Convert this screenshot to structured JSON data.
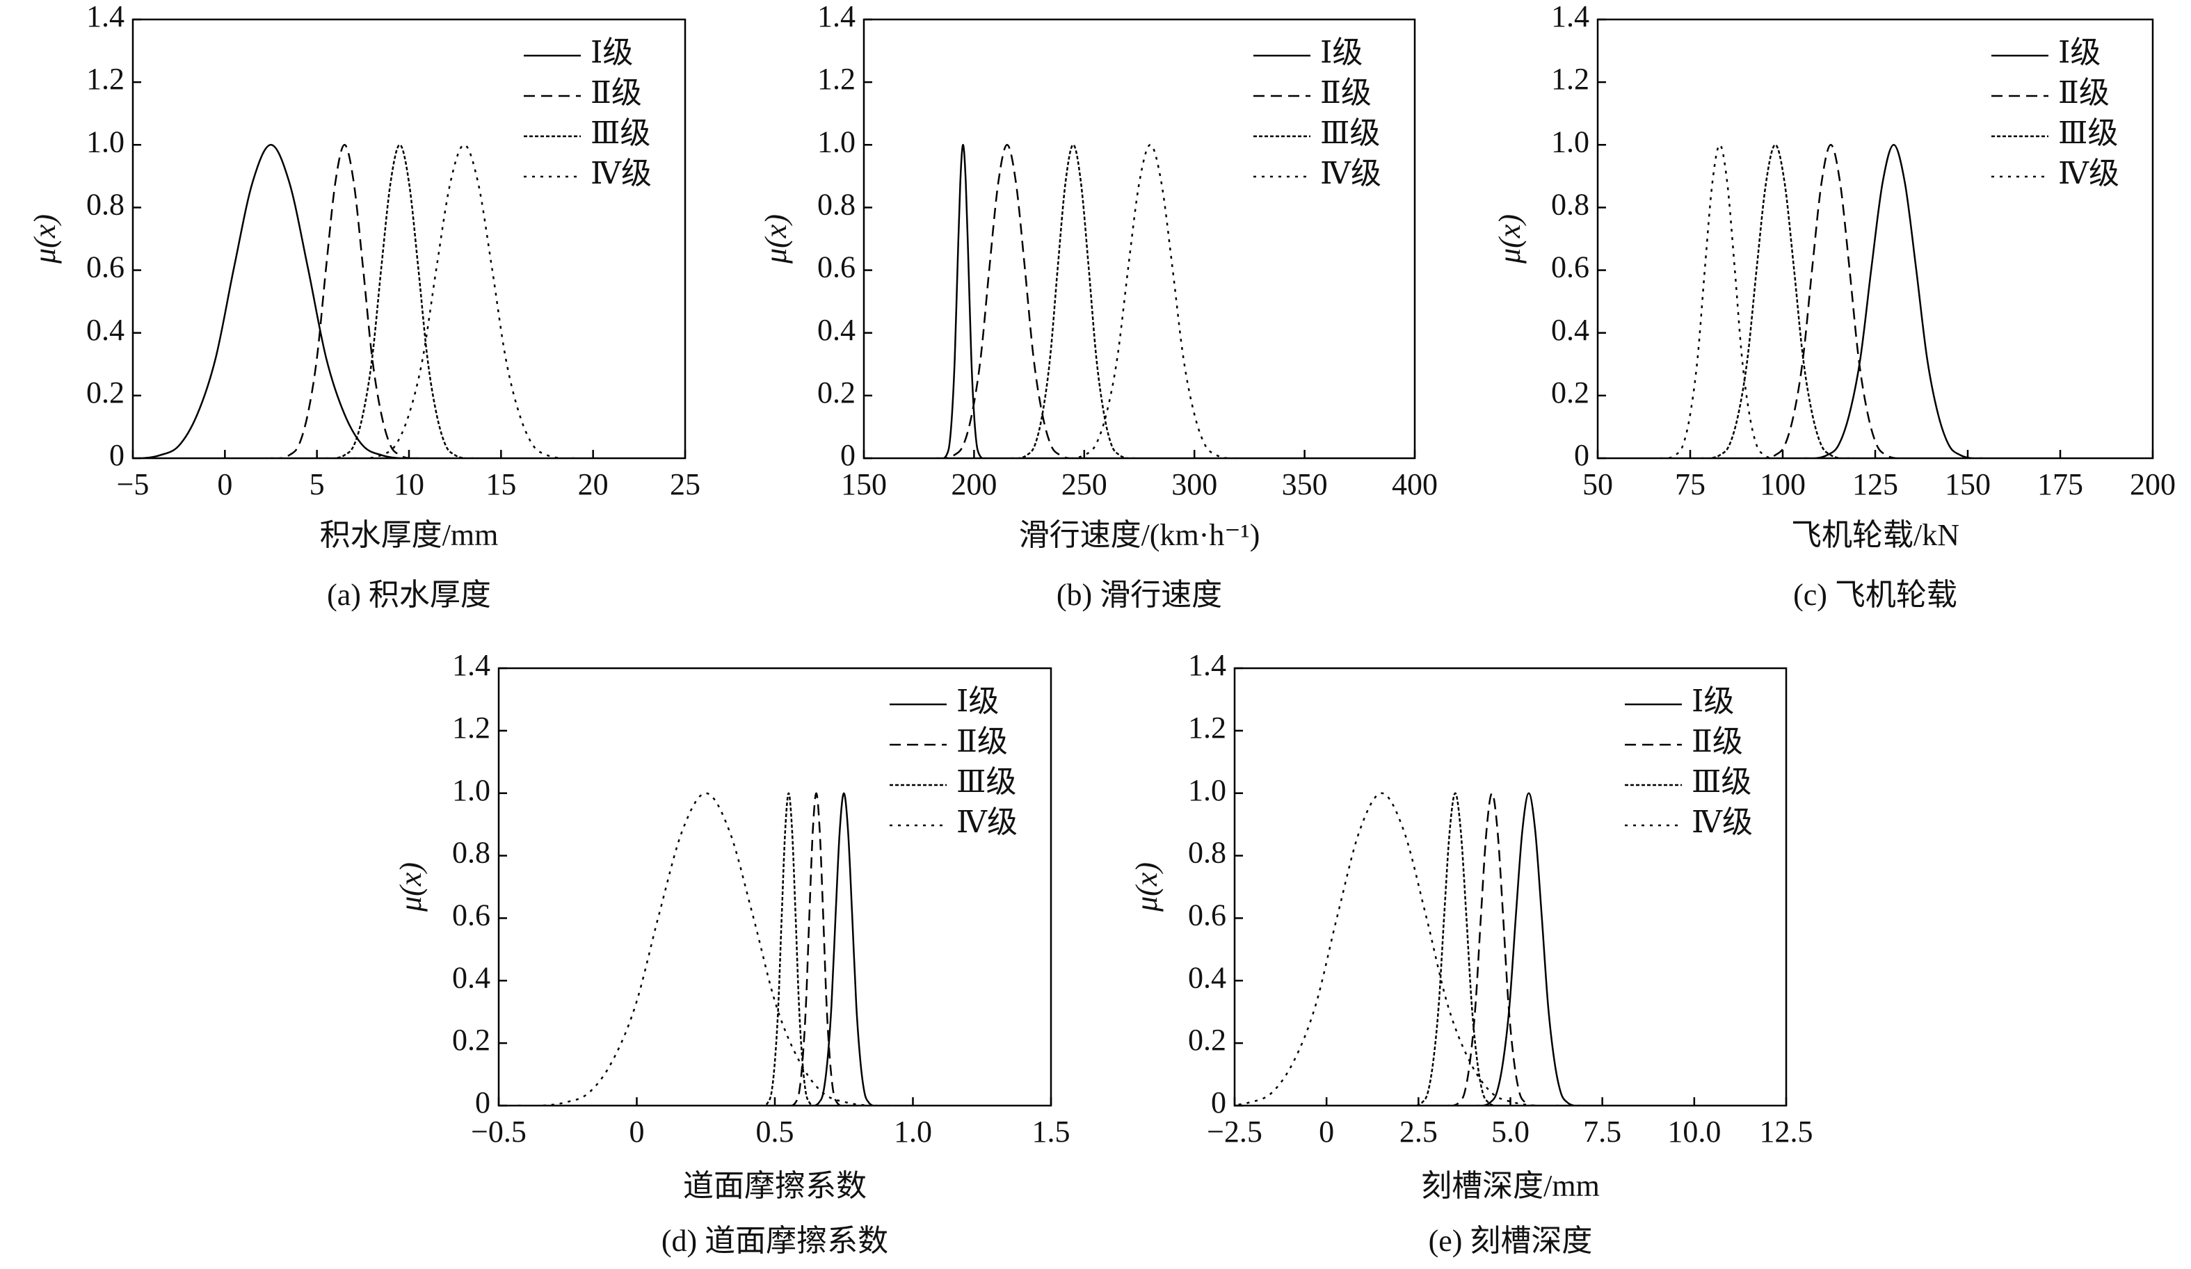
{
  "chart_data": [
    {
      "type": "line",
      "title": "(a) 积水厚度",
      "x_label": "积水厚度/mm",
      "y_label": "μ(x)",
      "xlim": [
        -5,
        25
      ],
      "ylim": [
        0,
        1.4
      ],
      "xticks": [
        {
          "value": -5,
          "label": "−5"
        },
        0,
        5,
        10,
        15,
        20,
        25
      ],
      "yticks": [
        0,
        0.2,
        0.4,
        0.6,
        0.8,
        {
          "value": 1,
          "label": "1.0"
        },
        1.2,
        1.4
      ],
      "legend": "upper right",
      "series": [
        {
          "name": "Ⅰ级",
          "color": "#000000",
          "line_style": "solid",
          "x": [
            -5.5,
            -4.5,
            -3.5,
            -2.5,
            -1.5,
            -0.5,
            0.5,
            1.5,
            2.5,
            3.5,
            4.5,
            5.5,
            6.5,
            7.5,
            8.5,
            9.5,
            10.5
          ],
          "values": [
            0,
            0,
            0.01,
            0.04,
            0.14,
            0.32,
            0.61,
            0.88,
            1,
            0.88,
            0.61,
            0.32,
            0.14,
            0.04,
            0.01,
            0,
            0
          ]
        },
        {
          "name": "Ⅱ级",
          "color": "#000000",
          "line_style": "dashed",
          "x": [
            2.5,
            3,
            3.5,
            4,
            4.5,
            5,
            5.5,
            6,
            6.5,
            7,
            7.5,
            8,
            8.5,
            9,
            9.5,
            10,
            10.5
          ],
          "values": [
            0,
            0,
            0.01,
            0.04,
            0.14,
            0.32,
            0.61,
            0.88,
            1,
            0.88,
            0.61,
            0.32,
            0.14,
            0.04,
            0.01,
            0,
            0
          ]
        },
        {
          "name": "Ⅲ级",
          "color": "#000000",
          "line_style": "dotted",
          "x": [
            5.5,
            6,
            6.5,
            7,
            7.5,
            8,
            8.5,
            9,
            9.5,
            10,
            10.5,
            11,
            11.5,
            12,
            12.5,
            13,
            13.5
          ],
          "values": [
            0,
            0,
            0.01,
            0.04,
            0.14,
            0.32,
            0.61,
            0.88,
            1,
            0.88,
            0.61,
            0.32,
            0.14,
            0.04,
            0.01,
            0,
            0
          ]
        },
        {
          "name": "Ⅳ级",
          "color": "#000000",
          "line_style": "sparse-dotted",
          "x": [
            7,
            7.75,
            8.5,
            9.25,
            10,
            10.75,
            11.5,
            12.25,
            13,
            13.75,
            14.5,
            15.25,
            16,
            16.75,
            17.5,
            18.25,
            19
          ],
          "values": [
            0,
            0,
            0.01,
            0.04,
            0.14,
            0.32,
            0.61,
            0.88,
            1,
            0.88,
            0.61,
            0.32,
            0.14,
            0.04,
            0.01,
            0,
            0
          ]
        }
      ]
    },
    {
      "type": "line",
      "title": "(b) 滑行速度",
      "x_label": "滑行速度/(km·h⁻¹)",
      "y_label": "μ(x)",
      "xlim": [
        150,
        400
      ],
      "ylim": [
        0,
        1.4
      ],
      "xticks": [
        150,
        200,
        250,
        300,
        350,
        400
      ],
      "yticks": [
        0,
        0.2,
        0.4,
        0.6,
        0.8,
        {
          "value": 1,
          "label": "1.0"
        },
        1.2,
        1.4
      ],
      "legend": "upper right",
      "series": [
        {
          "name": "Ⅰ级",
          "color": "#000000",
          "line_style": "solid",
          "x": [
            185,
            186.25,
            187.5,
            188.75,
            190,
            191.25,
            192.5,
            193.75,
            195,
            196.25,
            197.5,
            198.75,
            200,
            201.25,
            202.5,
            203.75,
            205
          ],
          "values": [
            0,
            0,
            0.01,
            0.04,
            0.14,
            0.32,
            0.61,
            0.88,
            1,
            0.88,
            0.61,
            0.32,
            0.14,
            0.04,
            0.01,
            0,
            0
          ]
        },
        {
          "name": "Ⅱ级",
          "color": "#000000",
          "line_style": "dashed",
          "x": [
            183,
            187,
            191,
            195,
            199,
            203,
            207,
            211,
            215,
            219,
            223,
            227,
            231,
            235,
            239,
            243,
            247
          ],
          "values": [
            0,
            0,
            0.01,
            0.04,
            0.14,
            0.32,
            0.61,
            0.88,
            1,
            0.88,
            0.61,
            0.32,
            0.14,
            0.04,
            0.01,
            0,
            0
          ]
        },
        {
          "name": "Ⅲ级",
          "color": "#000000",
          "line_style": "dotted",
          "x": [
            217,
            220.5,
            224,
            227.5,
            231,
            234.5,
            238,
            241.5,
            245,
            248.5,
            252,
            255.5,
            259,
            262.5,
            266,
            269.5,
            273
          ],
          "values": [
            0,
            0,
            0.01,
            0.04,
            0.14,
            0.32,
            0.61,
            0.88,
            1,
            0.88,
            0.61,
            0.32,
            0.14,
            0.04,
            0.01,
            0,
            0
          ]
        },
        {
          "name": "Ⅳ级",
          "color": "#000000",
          "line_style": "sparse-dotted",
          "x": [
            240,
            245,
            250,
            255,
            260,
            265,
            270,
            275,
            280,
            285,
            290,
            295,
            300,
            305,
            310,
            315,
            320
          ],
          "values": [
            0,
            0,
            0.01,
            0.04,
            0.14,
            0.32,
            0.61,
            0.88,
            1,
            0.88,
            0.61,
            0.32,
            0.14,
            0.04,
            0.01,
            0,
            0
          ]
        }
      ]
    },
    {
      "type": "line",
      "title": "(c) 飞机轮载",
      "x_label": "飞机轮载/kN",
      "y_label": "μ(x)",
      "xlim": [
        50,
        200
      ],
      "ylim": [
        0,
        1.4
      ],
      "xticks": [
        50,
        75,
        100,
        125,
        150,
        175,
        200
      ],
      "yticks": [
        0,
        0.2,
        0.4,
        0.6,
        0.8,
        {
          "value": 1,
          "label": "1.0"
        },
        1.2,
        1.4
      ],
      "legend": "upper right",
      "series": [
        {
          "name": "Ⅰ级",
          "color": "#000000",
          "line_style": "solid",
          "x": [
            106,
            109,
            112,
            115,
            118,
            121,
            124,
            127,
            130,
            133,
            136,
            139,
            142,
            145,
            148,
            151,
            154
          ],
          "values": [
            0,
            0,
            0.01,
            0.04,
            0.14,
            0.32,
            0.61,
            0.88,
            1,
            0.88,
            0.61,
            0.32,
            0.14,
            0.04,
            0.01,
            0,
            0
          ]
        },
        {
          "name": "Ⅱ级",
          "color": "#000000",
          "line_style": "dashed",
          "x": [
            93,
            95.5,
            98,
            100.5,
            103,
            105.5,
            108,
            110.5,
            113,
            115.5,
            118,
            120.5,
            123,
            125.5,
            128,
            130.5,
            133
          ],
          "values": [
            0,
            0,
            0.01,
            0.04,
            0.14,
            0.32,
            0.61,
            0.88,
            1,
            0.88,
            0.61,
            0.32,
            0.14,
            0.04,
            0.01,
            0,
            0
          ]
        },
        {
          "name": "Ⅲ级",
          "color": "#000000",
          "line_style": "dotted",
          "x": [
            78,
            80.5,
            83,
            85.5,
            88,
            90.5,
            93,
            95.5,
            98,
            100.5,
            103,
            105.5,
            108,
            110.5,
            113,
            115.5,
            118
          ],
          "values": [
            0,
            0,
            0.01,
            0.04,
            0.14,
            0.32,
            0.61,
            0.88,
            1,
            0.88,
            0.61,
            0.32,
            0.14,
            0.04,
            0.01,
            0,
            0
          ]
        },
        {
          "name": "Ⅳ级",
          "color": "#000000",
          "line_style": "sparse-dotted",
          "x": [
            67,
            69,
            71,
            73,
            75,
            77,
            79,
            81,
            83,
            85,
            87,
            89,
            91,
            93,
            95,
            97,
            99
          ],
          "values": [
            0,
            0,
            0.01,
            0.04,
            0.14,
            0.32,
            0.61,
            0.88,
            1,
            0.88,
            0.61,
            0.32,
            0.14,
            0.04,
            0.01,
            0,
            0
          ]
        }
      ]
    },
    {
      "type": "line",
      "title": "(d) 道面摩擦系数",
      "x_label": "道面摩擦系数",
      "y_label": "μ(x)",
      "xlim": [
        -0.5,
        1.5
      ],
      "ylim": [
        0,
        1.4
      ],
      "xticks": [
        {
          "value": -0.5,
          "label": "−0.5"
        },
        0,
        0.5,
        {
          "value": 1,
          "label": "1.0"
        },
        1.5
      ],
      "yticks": [
        0,
        0.2,
        0.4,
        0.6,
        0.8,
        {
          "value": 1,
          "label": "1.0"
        },
        1.2,
        1.4
      ],
      "legend": "upper right",
      "series": [
        {
          "name": "Ⅰ级",
          "color": "#000000",
          "line_style": "solid",
          "x": [
            0.63,
            0.645,
            0.66,
            0.675,
            0.69,
            0.705,
            0.72,
            0.735,
            0.75,
            0.765,
            0.78,
            0.795,
            0.81,
            0.825,
            0.84,
            0.855,
            0.87
          ],
          "values": [
            0,
            0,
            0.01,
            0.04,
            0.14,
            0.32,
            0.61,
            0.88,
            1,
            0.88,
            0.61,
            0.32,
            0.14,
            0.04,
            0.01,
            0,
            0
          ]
        },
        {
          "name": "Ⅱ级",
          "color": "#000000",
          "line_style": "dashed",
          "x": [
            0.55,
            0.5625,
            0.575,
            0.5875,
            0.6,
            0.6125,
            0.625,
            0.6375,
            0.65,
            0.6625,
            0.675,
            0.6875,
            0.7,
            0.7125,
            0.725,
            0.7375,
            0.75
          ],
          "values": [
            0,
            0,
            0.01,
            0.04,
            0.14,
            0.32,
            0.61,
            0.88,
            1,
            0.88,
            0.61,
            0.32,
            0.14,
            0.04,
            0.01,
            0,
            0
          ]
        },
        {
          "name": "Ⅲ级",
          "color": "#000000",
          "line_style": "dotted",
          "x": [
            0.45,
            0.4625,
            0.475,
            0.4875,
            0.5,
            0.5125,
            0.525,
            0.5375,
            0.55,
            0.5625,
            0.575,
            0.5875,
            0.6,
            0.6125,
            0.625,
            0.6375,
            0.65
          ],
          "values": [
            0,
            0,
            0.01,
            0.04,
            0.14,
            0.32,
            0.61,
            0.88,
            1,
            0.88,
            0.61,
            0.32,
            0.14,
            0.04,
            0.01,
            0,
            0
          ]
        },
        {
          "name": "Ⅳ级",
          "color": "#000000",
          "line_style": "sparse-dotted",
          "x": [
            -0.43,
            -0.345,
            -0.26,
            -0.175,
            -0.09,
            -0.005,
            0.08,
            0.165,
            0.25,
            0.335,
            0.42,
            0.505,
            0.59,
            0.675,
            0.76,
            0.845,
            0.93
          ],
          "values": [
            0,
            0,
            0.01,
            0.04,
            0.14,
            0.32,
            0.61,
            0.88,
            1,
            0.88,
            0.61,
            0.32,
            0.14,
            0.04,
            0.01,
            0,
            0
          ]
        }
      ]
    },
    {
      "type": "line",
      "title": "(e) 刻槽深度",
      "x_label": "刻槽深度/mm",
      "y_label": "μ(x)",
      "xlim": [
        -2.5,
        12.5
      ],
      "ylim": [
        0,
        1.4
      ],
      "xticks": [
        {
          "value": -2.5,
          "label": "−2.5"
        },
        0,
        2.5,
        {
          "value": 5,
          "label": "5.0"
        },
        7.5,
        {
          "value": 10,
          "label": "10.0"
        },
        12.5
      ],
      "yticks": [
        0,
        0.2,
        0.4,
        0.6,
        0.8,
        {
          "value": 1,
          "label": "1.0"
        },
        1.2,
        1.4
      ],
      "legend": "upper right",
      "series": [
        {
          "name": "Ⅰ级",
          "color": "#000000",
          "line_style": "solid",
          "x": [
            4.1,
            4.275,
            4.45,
            4.625,
            4.8,
            4.975,
            5.15,
            5.325,
            5.5,
            5.675,
            5.85,
            6.025,
            6.2,
            6.375,
            6.55,
            6.725,
            6.9
          ],
          "values": [
            0,
            0,
            0.01,
            0.04,
            0.14,
            0.32,
            0.61,
            0.88,
            1,
            0.88,
            0.61,
            0.32,
            0.14,
            0.04,
            0.01,
            0,
            0
          ]
        },
        {
          "name": "Ⅱ级",
          "color": "#000000",
          "line_style": "dashed",
          "x": [
            3.3,
            3.45,
            3.6,
            3.75,
            3.9,
            4.05,
            4.2,
            4.35,
            4.5,
            4.65,
            4.8,
            4.95,
            5.1,
            5.25,
            5.4,
            5.55,
            5.7
          ],
          "values": [
            0,
            0,
            0.01,
            0.04,
            0.14,
            0.32,
            0.61,
            0.88,
            1,
            0.88,
            0.61,
            0.32,
            0.14,
            0.04,
            0.01,
            0,
            0
          ]
        },
        {
          "name": "Ⅲ级",
          "color": "#000000",
          "line_style": "dotted",
          "x": [
            2.3,
            2.45,
            2.6,
            2.75,
            2.9,
            3.05,
            3.2,
            3.35,
            3.5,
            3.65,
            3.8,
            3.95,
            4.1,
            4.25,
            4.4,
            4.55,
            4.7
          ],
          "values": [
            0,
            0,
            0.01,
            0.04,
            0.14,
            0.32,
            0.61,
            0.88,
            1,
            0.88,
            0.61,
            0.32,
            0.14,
            0.04,
            0.01,
            0,
            0
          ]
        },
        {
          "name": "Ⅳ级",
          "color": "#000000",
          "line_style": "sparse-dotted",
          "x": [
            -3.3,
            -2.7,
            -2.1,
            -1.5,
            -0.9,
            -0.3,
            0.3,
            0.9,
            1.5,
            2.1,
            2.7,
            3.3,
            3.9,
            4.5,
            5.1,
            5.7,
            6.3
          ],
          "values": [
            0,
            0,
            0.01,
            0.04,
            0.14,
            0.32,
            0.61,
            0.88,
            1,
            0.88,
            0.61,
            0.32,
            0.14,
            0.04,
            0.01,
            0,
            0
          ]
        }
      ]
    }
  ]
}
